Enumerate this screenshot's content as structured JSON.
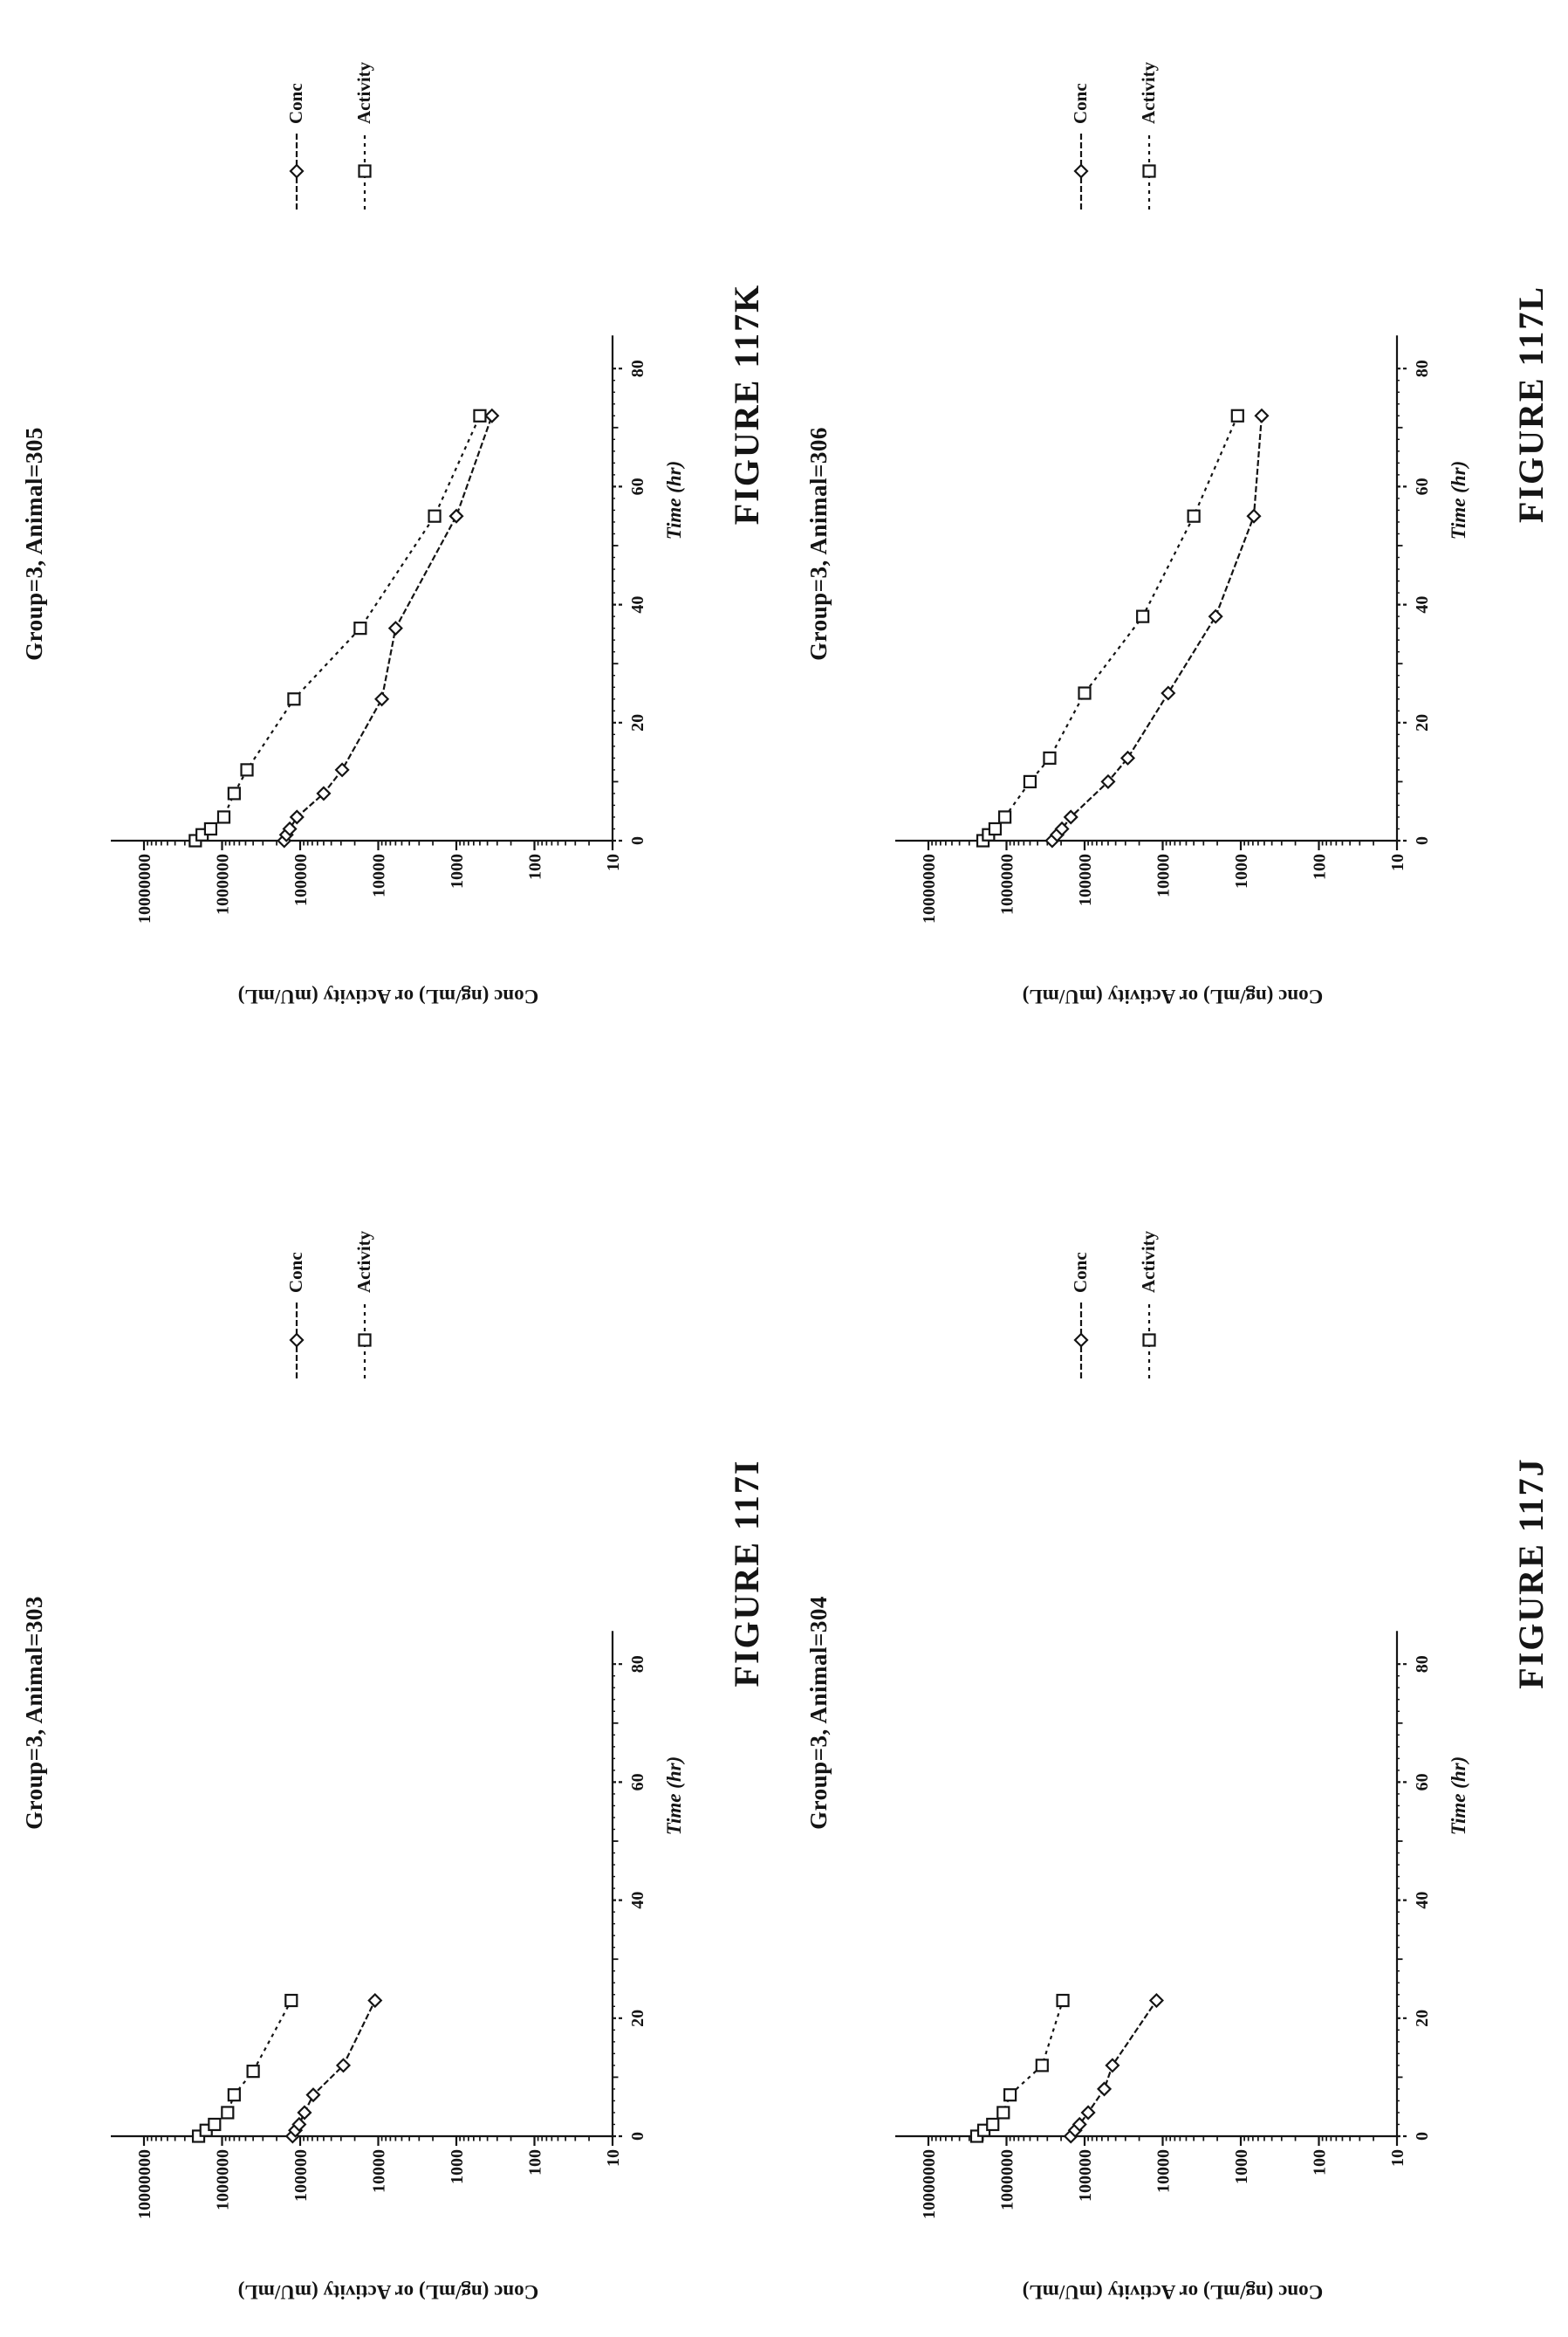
{
  "page": {
    "background": "#ffffff",
    "ink_color": "#141414"
  },
  "legend": {
    "items": [
      {
        "label": "Conc",
        "marker": "diamond"
      },
      {
        "label": "Activity",
        "marker": "square"
      }
    ]
  },
  "axes": {
    "x": {
      "label": "Time (hr)",
      "min": 0,
      "max": 80,
      "major_ticks": [
        0,
        20,
        40,
        60,
        80
      ],
      "minor_step": 10,
      "micro_step": 2
    },
    "y": {
      "label": "Conc (ng/mL) or Activity (mU/mL)",
      "scale": "log",
      "min": 10,
      "max": 10000000,
      "decade_labels": [
        "10000000",
        "1000000",
        "100000",
        "10000",
        "1000",
        "100",
        "10"
      ]
    }
  },
  "chart_data": [
    {
      "id": "117I",
      "type": "line",
      "figure_label": "FIGURE 117I",
      "title": "Group=3, Animal=303",
      "xlabel": "Time (hr)",
      "ylabel": "Conc (ng/mL) or Activity (mU/mL)",
      "x_range": [
        0,
        80
      ],
      "y_scale": "log",
      "y_range": [
        10,
        10000000
      ],
      "grid": false,
      "legend_position": "right",
      "series": [
        {
          "name": "Conc",
          "marker": "diamond",
          "points": [
            [
              0,
              125000
            ],
            [
              1,
              115000
            ],
            [
              2,
              103000
            ],
            [
              4,
              88000
            ],
            [
              7,
              68000
            ],
            [
              12,
              28000
            ],
            [
              23,
              11000
            ]
          ]
        },
        {
          "name": "Activity",
          "marker": "square",
          "points": [
            [
              0,
              2000000
            ],
            [
              1,
              1600000
            ],
            [
              2,
              1250000
            ],
            [
              4,
              850000
            ],
            [
              7,
              700000
            ],
            [
              11,
              400000
            ],
            [
              23,
              130000
            ]
          ]
        }
      ],
      "layout": {
        "row": 0,
        "col": 0,
        "plot_left": 230
      }
    },
    {
      "id": "117J",
      "type": "line",
      "figure_label": "FIGURE 117J",
      "title": "Group=3, Animal=304",
      "xlabel": "Time (hr)",
      "ylabel": "Conc (ng/mL) or Activity (mU/mL)",
      "x_range": [
        0,
        80
      ],
      "y_scale": "log",
      "y_range": [
        10,
        10000000
      ],
      "grid": false,
      "legend_position": "right",
      "series": [
        {
          "name": "Conc",
          "marker": "diamond",
          "points": [
            [
              0,
              150000
            ],
            [
              1,
              132000
            ],
            [
              2,
              116000
            ],
            [
              4,
              90000
            ],
            [
              8,
              56000
            ],
            [
              12,
              44000
            ],
            [
              23,
              12000
            ]
          ]
        },
        {
          "name": "Activity",
          "marker": "square",
          "points": [
            [
              0,
              2400000
            ],
            [
              1,
              1950000
            ],
            [
              2,
              1500000
            ],
            [
              4,
              1100000
            ],
            [
              7,
              900000
            ],
            [
              12,
              350000
            ],
            [
              23,
              190000
            ]
          ]
        }
      ],
      "layout": {
        "row": 1,
        "col": 0,
        "plot_left": 230
      }
    },
    {
      "id": "117K",
      "type": "line",
      "figure_label": "FIGURE 117K",
      "title": "Group=3, Animal=305",
      "xlabel": "Time (hr)",
      "ylabel": "Conc (ng/mL) or Activity (mU/mL)",
      "x_range": [
        0,
        80
      ],
      "y_scale": "log",
      "y_range": [
        10,
        10000000
      ],
      "grid": false,
      "legend_position": "right",
      "series": [
        {
          "name": "Conc",
          "marker": "diamond",
          "points": [
            [
              0,
              160000
            ],
            [
              1,
              150000
            ],
            [
              2,
              136000
            ],
            [
              4,
              110000
            ],
            [
              8,
              50000
            ],
            [
              12,
              29000
            ],
            [
              24,
              9000
            ],
            [
              36,
              6000
            ],
            [
              55,
              1000
            ],
            [
              72,
              350
            ]
          ]
        },
        {
          "name": "Activity",
          "marker": "square",
          "points": [
            [
              0,
              2200000
            ],
            [
              1,
              1800000
            ],
            [
              2,
              1400000
            ],
            [
              4,
              950000
            ],
            [
              8,
              700000
            ],
            [
              12,
              480000
            ],
            [
              24,
              120000
            ],
            [
              36,
              17000
            ],
            [
              55,
              1900
            ],
            [
              72,
              500
            ]
          ]
        }
      ],
      "layout": {
        "row": 0,
        "col": 1,
        "plot_left": 375
      }
    },
    {
      "id": "117L",
      "type": "line",
      "figure_label": "FIGURE 117L",
      "title": "Group=3, Animal=306",
      "xlabel": "Time (hr)",
      "ylabel": "Conc (ng/mL) or Activity (mU/mL)",
      "x_range": [
        0,
        80
      ],
      "y_scale": "log",
      "y_range": [
        10,
        10000000
      ],
      "grid": false,
      "legend_position": "right",
      "series": [
        {
          "name": "Conc",
          "marker": "diamond",
          "points": [
            [
              0,
              260000
            ],
            [
              1,
              225000
            ],
            [
              2,
              195000
            ],
            [
              4,
              150000
            ],
            [
              10,
              50000
            ],
            [
              14,
              28000
            ],
            [
              25,
              8500
            ],
            [
              38,
              2100
            ],
            [
              55,
              680
            ],
            [
              72,
              540
            ]
          ]
        },
        {
          "name": "Activity",
          "marker": "square",
          "points": [
            [
              0,
              2000000
            ],
            [
              1,
              1700000
            ],
            [
              2,
              1400000
            ],
            [
              4,
              1050000
            ],
            [
              10,
              500000
            ],
            [
              14,
              280000
            ],
            [
              25,
              100000
            ],
            [
              38,
              18000
            ],
            [
              55,
              4000
            ],
            [
              72,
              1100
            ]
          ]
        }
      ],
      "layout": {
        "row": 1,
        "col": 1,
        "plot_left": 375
      }
    }
  ]
}
